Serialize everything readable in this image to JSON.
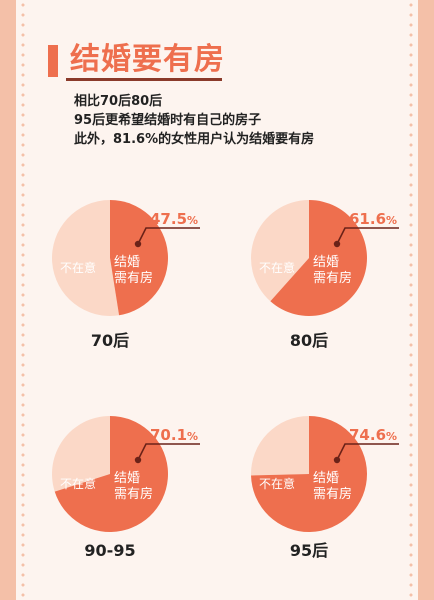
{
  "header": {
    "title": "结婚要有房",
    "subtitle_lines": [
      "相比70后80后",
      "95后更希望结婚时有自己的房子",
      "此外，81.6%的女性用户认为结婚要有房"
    ]
  },
  "colors": {
    "page_background": "#fdf4ef",
    "border_pink": "#f4c0a8",
    "accent_orange": "#ee6f4e",
    "light_peach": "#fbd8c7",
    "pointer_dark": "#6b2218"
  },
  "chart_data": [
    {
      "type": "pie",
      "title": "70后",
      "slices": [
        {
          "label": "结婚需有房",
          "value": 47.5,
          "color": "#ee6f4e"
        },
        {
          "label": "不在意",
          "value": 52.5,
          "color": "#fbd8c7"
        }
      ],
      "highlight_value": "47.5",
      "highlight_unit": "%",
      "highlight_label_lines": [
        "结婚",
        "需有房"
      ],
      "other_label": "不在意"
    },
    {
      "type": "pie",
      "title": "80后",
      "slices": [
        {
          "label": "结婚需有房",
          "value": 61.6,
          "color": "#ee6f4e"
        },
        {
          "label": "不在意",
          "value": 38.4,
          "color": "#fbd8c7"
        }
      ],
      "highlight_value": "61.6",
      "highlight_unit": "%",
      "highlight_label_lines": [
        "结婚",
        "需有房"
      ],
      "other_label": "不在意"
    },
    {
      "type": "pie",
      "title": "90-95",
      "slices": [
        {
          "label": "结婚需有房",
          "value": 70.1,
          "color": "#ee6f4e"
        },
        {
          "label": "不在意",
          "value": 29.9,
          "color": "#fbd8c7"
        }
      ],
      "highlight_value": "70.1",
      "highlight_unit": "%",
      "highlight_label_lines": [
        "结婚",
        "需有房"
      ],
      "other_label": "不在意"
    },
    {
      "type": "pie",
      "title": "95后",
      "slices": [
        {
          "label": "结婚需有房",
          "value": 74.6,
          "color": "#ee6f4e"
        },
        {
          "label": "不在意",
          "value": 25.4,
          "color": "#fbd8c7"
        }
      ],
      "highlight_value": "74.6",
      "highlight_unit": "%",
      "highlight_label_lines": [
        "结婚",
        "需有房"
      ],
      "other_label": "不在意"
    }
  ]
}
